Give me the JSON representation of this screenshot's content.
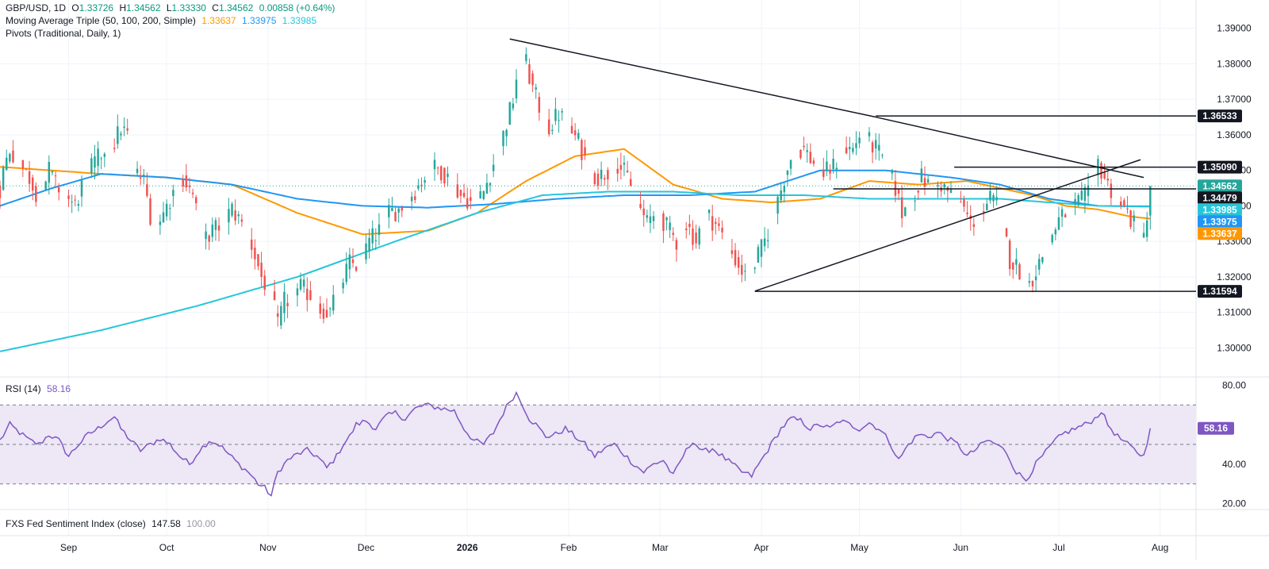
{
  "header": {
    "symbol": "GBP/USD, 1D",
    "o_label": "O",
    "o_value": "1.33726",
    "h_label": "H",
    "h_value": "1.34562",
    "l_label": "L",
    "l_value": "1.33330",
    "c_label": "C",
    "c_value": "1.34562",
    "change": "0.00858 (+0.64%)"
  },
  "ma_legend": {
    "label": "Moving Average Triple (50, 100, 200, Simple)",
    "v50": "1.33637",
    "v100": "1.33975",
    "v200": "1.33985"
  },
  "pivots_legend": {
    "label": "Pivots (Traditional, Daily, 1)"
  },
  "rsi_legend": {
    "label": "RSI (14)",
    "value": "58.16"
  },
  "fxs_legend": {
    "label": "FXS Fed Sentiment Index (close)",
    "value": "147.58",
    "value2": "100.00"
  },
  "colors": {
    "up": "#26a69a",
    "down": "#ef5350",
    "ma50": "#ff9800",
    "ma100": "#2196f3",
    "ma200": "#26c6da",
    "rsi": "#7e57c2",
    "trend": "#131722",
    "rsi_band": "#ede7f6"
  },
  "chart_data": {
    "type": "candlestick",
    "title": "GBP/USD, 1D",
    "price_axis": {
      "ticks": [
        1.3,
        1.31,
        1.32,
        1.33,
        1.34,
        1.35,
        1.36,
        1.37,
        1.38,
        1.39
      ],
      "tick_labels": [
        "1.30000",
        "1.31000",
        "1.32000",
        "1.33000",
        "1.34000",
        "1.35000",
        "1.36000",
        "1.37000",
        "1.38000",
        "1.39000"
      ],
      "range": [
        1.2925,
        1.3935
      ]
    },
    "time_axis": {
      "labels": [
        "Sep",
        "Oct",
        "Nov",
        "Dec",
        "2026",
        "Feb",
        "Mar",
        "Apr",
        "May",
        "Jun",
        "Jul",
        "Aug"
      ],
      "label_days": [
        0,
        30,
        61,
        91,
        122,
        153,
        181,
        212,
        242,
        273,
        303,
        334
      ],
      "day_zero": "2025-09-01",
      "range_days": [
        -21,
        345
      ]
    },
    "price_anchors": [
      [
        -21,
        1.345
      ],
      [
        -20,
        1.35
      ],
      [
        -18,
        1.356
      ],
      [
        -15,
        1.352
      ],
      [
        -12,
        1.348
      ],
      [
        -9,
        1.342
      ],
      [
        -6,
        1.35
      ],
      [
        -4,
        1.346
      ],
      [
        -1,
        1.343
      ],
      [
        2,
        1.34
      ],
      [
        5,
        1.348
      ],
      [
        8,
        1.352
      ],
      [
        11,
        1.356
      ],
      [
        14,
        1.358
      ],
      [
        16,
        1.362
      ],
      [
        18,
        1.36
      ],
      [
        20,
        1.35
      ],
      [
        23,
        1.347
      ],
      [
        26,
        1.333
      ],
      [
        29,
        1.338
      ],
      [
        32,
        1.344
      ],
      [
        35,
        1.348
      ],
      [
        38,
        1.343
      ],
      [
        41,
        1.33
      ],
      [
        44,
        1.333
      ],
      [
        47,
        1.335
      ],
      [
        50,
        1.339
      ],
      [
        53,
        1.335
      ],
      [
        56,
        1.329
      ],
      [
        59,
        1.32
      ],
      [
        62,
        1.315
      ],
      [
        64,
        1.306
      ],
      [
        66,
        1.313
      ],
      [
        68,
        1.314
      ],
      [
        71,
        1.317
      ],
      [
        74,
        1.315
      ],
      [
        77,
        1.311
      ],
      [
        80,
        1.31
      ],
      [
        83,
        1.317
      ],
      [
        86,
        1.324
      ],
      [
        89,
        1.323
      ],
      [
        92,
        1.33
      ],
      [
        95,
        1.333
      ],
      [
        98,
        1.338
      ],
      [
        101,
        1.339
      ],
      [
        104,
        1.342
      ],
      [
        108,
        1.347
      ],
      [
        111,
        1.351
      ],
      [
        114,
        1.35
      ],
      [
        117,
        1.347
      ],
      [
        120,
        1.343
      ],
      [
        122,
        1.342
      ],
      [
        124,
        1.34
      ],
      [
        127,
        1.344
      ],
      [
        130,
        1.352
      ],
      [
        133,
        1.36
      ],
      [
        136,
        1.37
      ],
      [
        138,
        1.382
      ],
      [
        140,
        1.38
      ],
      [
        142,
        1.373
      ],
      [
        144,
        1.368
      ],
      [
        147,
        1.362
      ],
      [
        150,
        1.366
      ],
      [
        153,
        1.362
      ],
      [
        156,
        1.358
      ],
      [
        159,
        1.351
      ],
      [
        162,
        1.348
      ],
      [
        165,
        1.35
      ],
      [
        168,
        1.352
      ],
      [
        171,
        1.348
      ],
      [
        174,
        1.341
      ],
      [
        177,
        1.335
      ],
      [
        180,
        1.339
      ],
      [
        183,
        1.334
      ],
      [
        186,
        1.33
      ],
      [
        189,
        1.335
      ],
      [
        192,
        1.33
      ],
      [
        195,
        1.338
      ],
      [
        198,
        1.335
      ],
      [
        201,
        1.33
      ],
      [
        204,
        1.325
      ],
      [
        207,
        1.32
      ],
      [
        210,
        1.324
      ],
      [
        213,
        1.33
      ],
      [
        216,
        1.338
      ],
      [
        219,
        1.348
      ],
      [
        222,
        1.356
      ],
      [
        225,
        1.356
      ],
      [
        228,
        1.352
      ],
      [
        231,
        1.349
      ],
      [
        234,
        1.351
      ],
      [
        237,
        1.356
      ],
      [
        240,
        1.356
      ],
      [
        242,
        1.36
      ],
      [
        244,
        1.359
      ],
      [
        247,
        1.356
      ],
      [
        250,
        1.352
      ],
      [
        253,
        1.345
      ],
      [
        255,
        1.338
      ],
      [
        258,
        1.342
      ],
      [
        261,
        1.348
      ],
      [
        264,
        1.345
      ],
      [
        267,
        1.346
      ],
      [
        270,
        1.343
      ],
      [
        273,
        1.341
      ],
      [
        276,
        1.335
      ],
      [
        279,
        1.338
      ],
      [
        282,
        1.342
      ],
      [
        285,
        1.339
      ],
      [
        288,
        1.325
      ],
      [
        291,
        1.322
      ],
      [
        294,
        1.318
      ],
      [
        297,
        1.324
      ],
      [
        300,
        1.33
      ],
      [
        303,
        1.336
      ],
      [
        306,
        1.339
      ],
      [
        309,
        1.341
      ],
      [
        312,
        1.343
      ],
      [
        315,
        1.352
      ],
      [
        318,
        1.346
      ],
      [
        321,
        1.342
      ],
      [
        324,
        1.338
      ],
      [
        327,
        1.333
      ],
      [
        329,
        1.331
      ],
      [
        331,
        1.3455
      ]
    ],
    "last_ohlc": {
      "open": 1.33726,
      "high": 1.34562,
      "low": 1.3333,
      "close": 1.34562
    },
    "moving_averages": [
      {
        "name": "MA 50",
        "last": 1.33637,
        "anchors": [
          [
            -21,
            1.351
          ],
          [
            10,
            1.349
          ],
          [
            30,
            1.348
          ],
          [
            50,
            1.346
          ],
          [
            70,
            1.338
          ],
          [
            90,
            1.332
          ],
          [
            110,
            1.333
          ],
          [
            125,
            1.338
          ],
          [
            140,
            1.347
          ],
          [
            155,
            1.354
          ],
          [
            170,
            1.356
          ],
          [
            185,
            1.346
          ],
          [
            200,
            1.342
          ],
          [
            215,
            1.341
          ],
          [
            230,
            1.342
          ],
          [
            245,
            1.347
          ],
          [
            260,
            1.346
          ],
          [
            275,
            1.347
          ],
          [
            285,
            1.345
          ],
          [
            295,
            1.343
          ],
          [
            305,
            1.34
          ],
          [
            315,
            1.339
          ],
          [
            325,
            1.337
          ],
          [
            331,
            1.3364
          ]
        ]
      },
      {
        "name": "MA 100",
        "last": 1.33975,
        "anchors": [
          [
            -21,
            1.34
          ],
          [
            -5,
            1.345
          ],
          [
            10,
            1.349
          ],
          [
            30,
            1.348
          ],
          [
            50,
            1.346
          ],
          [
            70,
            1.342
          ],
          [
            90,
            1.34
          ],
          [
            110,
            1.3395
          ],
          [
            130,
            1.3405
          ],
          [
            150,
            1.342
          ],
          [
            170,
            1.343
          ],
          [
            190,
            1.343
          ],
          [
            210,
            1.344
          ],
          [
            230,
            1.35
          ],
          [
            250,
            1.35
          ],
          [
            270,
            1.348
          ],
          [
            285,
            1.346
          ],
          [
            300,
            1.342
          ],
          [
            315,
            1.34
          ],
          [
            331,
            1.3398
          ]
        ]
      },
      {
        "name": "MA 200",
        "last": 1.33985,
        "anchors": [
          [
            -21,
            1.299
          ],
          [
            10,
            1.305
          ],
          [
            40,
            1.312
          ],
          [
            70,
            1.32
          ],
          [
            100,
            1.33
          ],
          [
            125,
            1.338
          ],
          [
            145,
            1.343
          ],
          [
            165,
            1.344
          ],
          [
            185,
            1.344
          ],
          [
            205,
            1.343
          ],
          [
            225,
            1.343
          ],
          [
            245,
            1.342
          ],
          [
            265,
            1.342
          ],
          [
            285,
            1.342
          ],
          [
            300,
            1.341
          ],
          [
            315,
            1.34
          ],
          [
            331,
            1.3399
          ]
        ]
      }
    ],
    "trendlines": [
      {
        "from": [
          135,
          1.387
        ],
        "to": [
          247,
          1.365
        ]
      },
      {
        "from": [
          247,
          1.365
        ],
        "to": [
          329,
          1.348
        ]
      },
      {
        "from": [
          210,
          1.316
        ],
        "to": [
          328,
          1.353
        ]
      }
    ],
    "pivot_levels": [
      {
        "value": 1.36533,
        "from_day": 247,
        "label": "1.36533"
      },
      {
        "value": 1.3509,
        "from_day": 271,
        "label": "1.35090"
      },
      {
        "value": 1.34479,
        "from_day": 234,
        "label": "1.34479"
      },
      {
        "value": 1.31594,
        "from_day": 210,
        "label": "1.31594"
      }
    ],
    "current_price": {
      "value": 1.34562,
      "label": "1.34562"
    },
    "price_tags": [
      {
        "value": 1.34562,
        "label": "1.34562",
        "color": "#26a69a"
      },
      {
        "value": 1.34479,
        "label": "1.34479",
        "color": "#131722"
      },
      {
        "value": 1.33985,
        "label": "1.33985",
        "color": "#26c6da"
      },
      {
        "value": 1.33975,
        "label": "1.33975",
        "color": "#2196f3"
      },
      {
        "value": 1.33637,
        "label": "1.33637",
        "color": "#ff9800"
      },
      {
        "value": 1.3509,
        "label": "1.35090",
        "color": "#131722"
      },
      {
        "value": 1.36533,
        "label": "1.36533",
        "color": "#131722"
      },
      {
        "value": 1.31594,
        "label": "1.31594",
        "color": "#131722"
      }
    ],
    "rsi": {
      "period": 14,
      "last": 58.16,
      "range": [
        17,
        83
      ],
      "ticks": [
        20,
        40,
        80
      ],
      "tick_labels": [
        "20.00",
        "40.00",
        "80.00"
      ],
      "bands": [
        30,
        50,
        70
      ],
      "anchors": [
        [
          -21,
          52
        ],
        [
          -18,
          60
        ],
        [
          -15,
          56
        ],
        [
          -12,
          52
        ],
        [
          -9,
          50
        ],
        [
          -6,
          55
        ],
        [
          -3,
          52
        ],
        [
          0,
          44
        ],
        [
          3,
          50
        ],
        [
          6,
          55
        ],
        [
          9,
          58
        ],
        [
          12,
          62
        ],
        [
          14,
          64
        ],
        [
          16,
          58
        ],
        [
          19,
          52
        ],
        [
          22,
          47
        ],
        [
          25,
          50
        ],
        [
          28,
          53
        ],
        [
          31,
          50
        ],
        [
          34,
          44
        ],
        [
          37,
          40
        ],
        [
          40,
          47
        ],
        [
          43,
          52
        ],
        [
          46,
          50
        ],
        [
          49,
          45
        ],
        [
          52,
          40
        ],
        [
          55,
          36
        ],
        [
          58,
          30
        ],
        [
          60,
          28
        ],
        [
          62,
          24
        ],
        [
          64,
          36
        ],
        [
          67,
          42
        ],
        [
          70,
          45
        ],
        [
          73,
          47
        ],
        [
          76,
          44
        ],
        [
          79,
          38
        ],
        [
          82,
          44
        ],
        [
          84,
          50
        ],
        [
          86,
          54
        ],
        [
          88,
          60
        ],
        [
          91,
          62
        ],
        [
          94,
          58
        ],
        [
          97,
          64
        ],
        [
          100,
          66
        ],
        [
          103,
          63
        ],
        [
          106,
          68
        ],
        [
          109,
          70
        ],
        [
          112,
          69
        ],
        [
          115,
          68
        ],
        [
          118,
          67
        ],
        [
          121,
          58
        ],
        [
          124,
          52
        ],
        [
          127,
          50
        ],
        [
          130,
          56
        ],
        [
          133,
          66
        ],
        [
          135,
          72
        ],
        [
          137,
          76
        ],
        [
          139,
          70
        ],
        [
          141,
          63
        ],
        [
          143,
          60
        ],
        [
          146,
          54
        ],
        [
          149,
          55
        ],
        [
          152,
          58
        ],
        [
          155,
          54
        ],
        [
          158,
          50
        ],
        [
          161,
          44
        ],
        [
          164,
          48
        ],
        [
          167,
          50
        ],
        [
          170,
          45
        ],
        [
          173,
          40
        ],
        [
          176,
          36
        ],
        [
          179,
          40
        ],
        [
          182,
          42
        ],
        [
          185,
          34
        ],
        [
          188,
          44
        ],
        [
          191,
          52
        ],
        [
          194,
          46
        ],
        [
          197,
          48
        ],
        [
          200,
          44
        ],
        [
          203,
          40
        ],
        [
          206,
          36
        ],
        [
          209,
          34
        ],
        [
          212,
          42
        ],
        [
          215,
          50
        ],
        [
          218,
          58
        ],
        [
          221,
          63
        ],
        [
          224,
          62
        ],
        [
          227,
          58
        ],
        [
          230,
          60
        ],
        [
          233,
          58
        ],
        [
          236,
          62
        ],
        [
          239,
          60
        ],
        [
          242,
          58
        ],
        [
          245,
          61
        ],
        [
          248,
          58
        ],
        [
          251,
          52
        ],
        [
          254,
          42
        ],
        [
          257,
          50
        ],
        [
          260,
          55
        ],
        [
          263,
          54
        ],
        [
          266,
          56
        ],
        [
          269,
          53
        ],
        [
          272,
          50
        ],
        [
          275,
          44
        ],
        [
          278,
          48
        ],
        [
          281,
          52
        ],
        [
          284,
          50
        ],
        [
          287,
          46
        ],
        [
          290,
          36
        ],
        [
          293,
          32
        ],
        [
          296,
          40
        ],
        [
          299,
          46
        ],
        [
          302,
          52
        ],
        [
          305,
          56
        ],
        [
          308,
          58
        ],
        [
          311,
          60
        ],
        [
          314,
          63
        ],
        [
          316,
          67
        ],
        [
          318,
          60
        ],
        [
          321,
          54
        ],
        [
          324,
          50
        ],
        [
          327,
          46
        ],
        [
          329,
          44
        ],
        [
          331,
          58.16
        ]
      ]
    }
  }
}
